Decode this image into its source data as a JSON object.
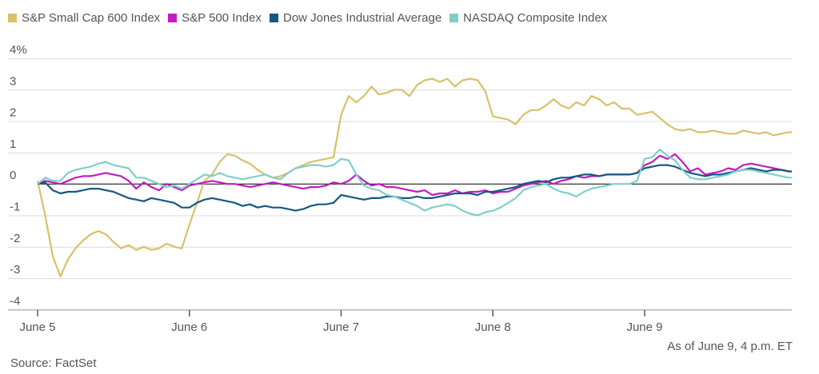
{
  "legend": [
    {
      "name": "S&P Small Cap 600 Index",
      "color": "#d9c06a"
    },
    {
      "name": "S&P 500 Index",
      "color": "#c21cc2"
    },
    {
      "name": "Dow Jones Industrial Average",
      "color": "#15587f"
    },
    {
      "name": "NASDAQ Composite Index",
      "color": "#7fcfc9"
    }
  ],
  "note": "As of June 9, 4 p.m. ET",
  "source": "Source: FactSet",
  "chart_data": {
    "type": "line",
    "title": "",
    "xlabel": "",
    "ylabel": "",
    "ylim": [
      -4,
      4
    ],
    "yticks": [
      "4%",
      "3",
      "2",
      "1",
      "0",
      "-1",
      "-2",
      "-3",
      "-4"
    ],
    "xticks": [
      "June 5",
      "June 6",
      "June 7",
      "June 8",
      "June 9"
    ],
    "x": [
      0,
      0.05,
      0.1,
      0.15,
      0.2,
      0.25,
      0.3,
      0.35,
      0.4,
      0.45,
      0.5,
      0.55,
      0.6,
      0.65,
      0.7,
      0.75,
      0.8,
      0.85,
      0.9,
      0.95,
      1,
      1.05,
      1.1,
      1.15,
      1.2,
      1.25,
      1.3,
      1.35,
      1.4,
      1.45,
      1.5,
      1.55,
      1.6,
      1.65,
      1.7,
      1.75,
      1.8,
      1.85,
      1.9,
      1.95,
      2,
      2.05,
      2.1,
      2.15,
      2.2,
      2.25,
      2.3,
      2.35,
      2.4,
      2.45,
      2.5,
      2.55,
      2.6,
      2.65,
      2.7,
      2.75,
      2.8,
      2.85,
      2.9,
      2.95,
      3,
      3.05,
      3.1,
      3.15,
      3.2,
      3.25,
      3.3,
      3.35,
      3.4,
      3.45,
      3.5,
      3.55,
      3.6,
      3.65,
      3.7,
      3.75,
      3.8,
      3.85,
      3.9,
      3.95,
      4,
      4.05,
      4.1,
      4.15,
      4.2,
      4.25,
      4.3,
      4.35,
      4.4,
      4.45,
      4.5,
      4.55,
      4.6,
      4.65,
      4.7,
      4.75,
      4.8,
      4.85,
      4.9,
      4.95
    ],
    "series": [
      {
        "name": "S&P Small Cap 600 Index",
        "color": "#d9c06a",
        "values": [
          0.1,
          -1.0,
          -2.3,
          -2.95,
          -2.4,
          -2.05,
          -1.8,
          -1.6,
          -1.5,
          -1.6,
          -1.85,
          -2.05,
          -1.95,
          -2.1,
          -2.0,
          -2.1,
          -2.05,
          -1.9,
          -2.0,
          -2.05,
          -1.3,
          -0.6,
          0.1,
          0.3,
          0.7,
          0.95,
          0.9,
          0.75,
          0.65,
          0.45,
          0.3,
          0.2,
          0.25,
          0.35,
          0.5,
          0.6,
          0.7,
          0.75,
          0.8,
          0.85,
          2.2,
          2.8,
          2.6,
          2.8,
          3.1,
          2.85,
          2.9,
          3.0,
          3.0,
          2.8,
          3.15,
          3.3,
          3.35,
          3.25,
          3.35,
          3.1,
          3.3,
          3.35,
          3.3,
          2.95,
          2.15,
          2.1,
          2.05,
          1.9,
          2.2,
          2.35,
          2.35,
          2.5,
          2.7,
          2.5,
          2.4,
          2.6,
          2.5,
          2.8,
          2.7,
          2.5,
          2.6,
          2.4,
          2.4,
          2.2,
          2.25,
          2.3,
          2.1,
          1.9,
          1.75,
          1.7,
          1.75,
          1.65,
          1.65,
          1.7,
          1.65,
          1.6,
          1.6,
          1.7,
          1.65,
          1.6,
          1.65,
          1.55,
          1.6,
          1.65
        ]
      },
      {
        "name": "S&P 500 Index",
        "color": "#c21cc2",
        "values": [
          0.0,
          0.1,
          0.05,
          0.0,
          0.1,
          0.2,
          0.25,
          0.25,
          0.3,
          0.35,
          0.3,
          0.25,
          0.1,
          -0.15,
          0.05,
          -0.1,
          -0.2,
          0.0,
          -0.1,
          -0.2,
          -0.05,
          0.0,
          0.05,
          0.1,
          0.05,
          0.0,
          0.0,
          -0.05,
          -0.1,
          -0.05,
          0.0,
          0.05,
          0.0,
          -0.05,
          -0.1,
          -0.15,
          -0.1,
          -0.1,
          -0.05,
          0.05,
          0.0,
          0.1,
          0.3,
          0.1,
          -0.05,
          0.0,
          -0.1,
          -0.1,
          -0.15,
          -0.2,
          -0.25,
          -0.2,
          -0.35,
          -0.3,
          -0.3,
          -0.2,
          -0.3,
          -0.25,
          -0.25,
          -0.2,
          -0.3,
          -0.25,
          -0.25,
          -0.15,
          -0.05,
          0.0,
          0.05,
          0.1,
          0.0,
          0.1,
          0.15,
          0.25,
          0.2,
          0.25,
          0.25,
          0.3,
          0.3,
          0.3,
          0.3,
          0.35,
          0.6,
          0.7,
          0.9,
          0.8,
          0.95,
          0.7,
          0.4,
          0.5,
          0.3,
          0.35,
          0.4,
          0.5,
          0.45,
          0.6,
          0.65,
          0.6,
          0.55,
          0.5,
          0.45,
          0.4
        ]
      },
      {
        "name": "Dow Jones Industrial Average",
        "color": "#15587f",
        "values": [
          0.0,
          0.05,
          -0.2,
          -0.3,
          -0.25,
          -0.25,
          -0.2,
          -0.15,
          -0.15,
          -0.2,
          -0.25,
          -0.35,
          -0.45,
          -0.5,
          -0.55,
          -0.45,
          -0.5,
          -0.55,
          -0.6,
          -0.75,
          -0.75,
          -0.6,
          -0.5,
          -0.45,
          -0.5,
          -0.55,
          -0.6,
          -0.7,
          -0.65,
          -0.75,
          -0.7,
          -0.75,
          -0.75,
          -0.8,
          -0.85,
          -0.8,
          -0.7,
          -0.65,
          -0.65,
          -0.6,
          -0.35,
          -0.4,
          -0.45,
          -0.5,
          -0.45,
          -0.45,
          -0.4,
          -0.4,
          -0.45,
          -0.45,
          -0.4,
          -0.45,
          -0.45,
          -0.4,
          -0.35,
          -0.3,
          -0.3,
          -0.3,
          -0.35,
          -0.25,
          -0.25,
          -0.2,
          -0.15,
          -0.1,
          0.0,
          0.05,
          0.1,
          0.05,
          0.15,
          0.2,
          0.2,
          0.25,
          0.3,
          0.3,
          0.25,
          0.3,
          0.3,
          0.3,
          0.3,
          0.35,
          0.5,
          0.55,
          0.6,
          0.6,
          0.55,
          0.45,
          0.35,
          0.3,
          0.25,
          0.3,
          0.3,
          0.35,
          0.4,
          0.45,
          0.5,
          0.45,
          0.4,
          0.45,
          0.45,
          0.4
        ]
      },
      {
        "name": "NASDAQ Composite Index",
        "color": "#7fcfc9",
        "values": [
          0.0,
          0.2,
          0.1,
          0.1,
          0.35,
          0.45,
          0.5,
          0.55,
          0.65,
          0.7,
          0.6,
          0.55,
          0.5,
          0.2,
          0.2,
          0.1,
          0.0,
          -0.1,
          -0.05,
          -0.15,
          0.0,
          0.15,
          0.3,
          0.25,
          0.35,
          0.25,
          0.2,
          0.15,
          0.2,
          0.25,
          0.3,
          0.2,
          0.15,
          0.35,
          0.5,
          0.55,
          0.6,
          0.6,
          0.55,
          0.6,
          0.8,
          0.75,
          0.3,
          -0.05,
          -0.15,
          -0.2,
          -0.35,
          -0.4,
          -0.5,
          -0.6,
          -0.7,
          -0.85,
          -0.75,
          -0.7,
          -0.65,
          -0.7,
          -0.85,
          -0.95,
          -1.0,
          -0.9,
          -0.85,
          -0.75,
          -0.6,
          -0.45,
          -0.2,
          -0.1,
          -0.05,
          0.0,
          -0.15,
          -0.25,
          -0.3,
          -0.4,
          -0.25,
          -0.15,
          -0.1,
          -0.05,
          0.0,
          0.0,
          0.0,
          0.1,
          0.8,
          0.85,
          1.1,
          0.9,
          0.75,
          0.45,
          0.2,
          0.15,
          0.15,
          0.2,
          0.25,
          0.3,
          0.4,
          0.45,
          0.45,
          0.4,
          0.35,
          0.3,
          0.25,
          0.2
        ]
      }
    ]
  }
}
